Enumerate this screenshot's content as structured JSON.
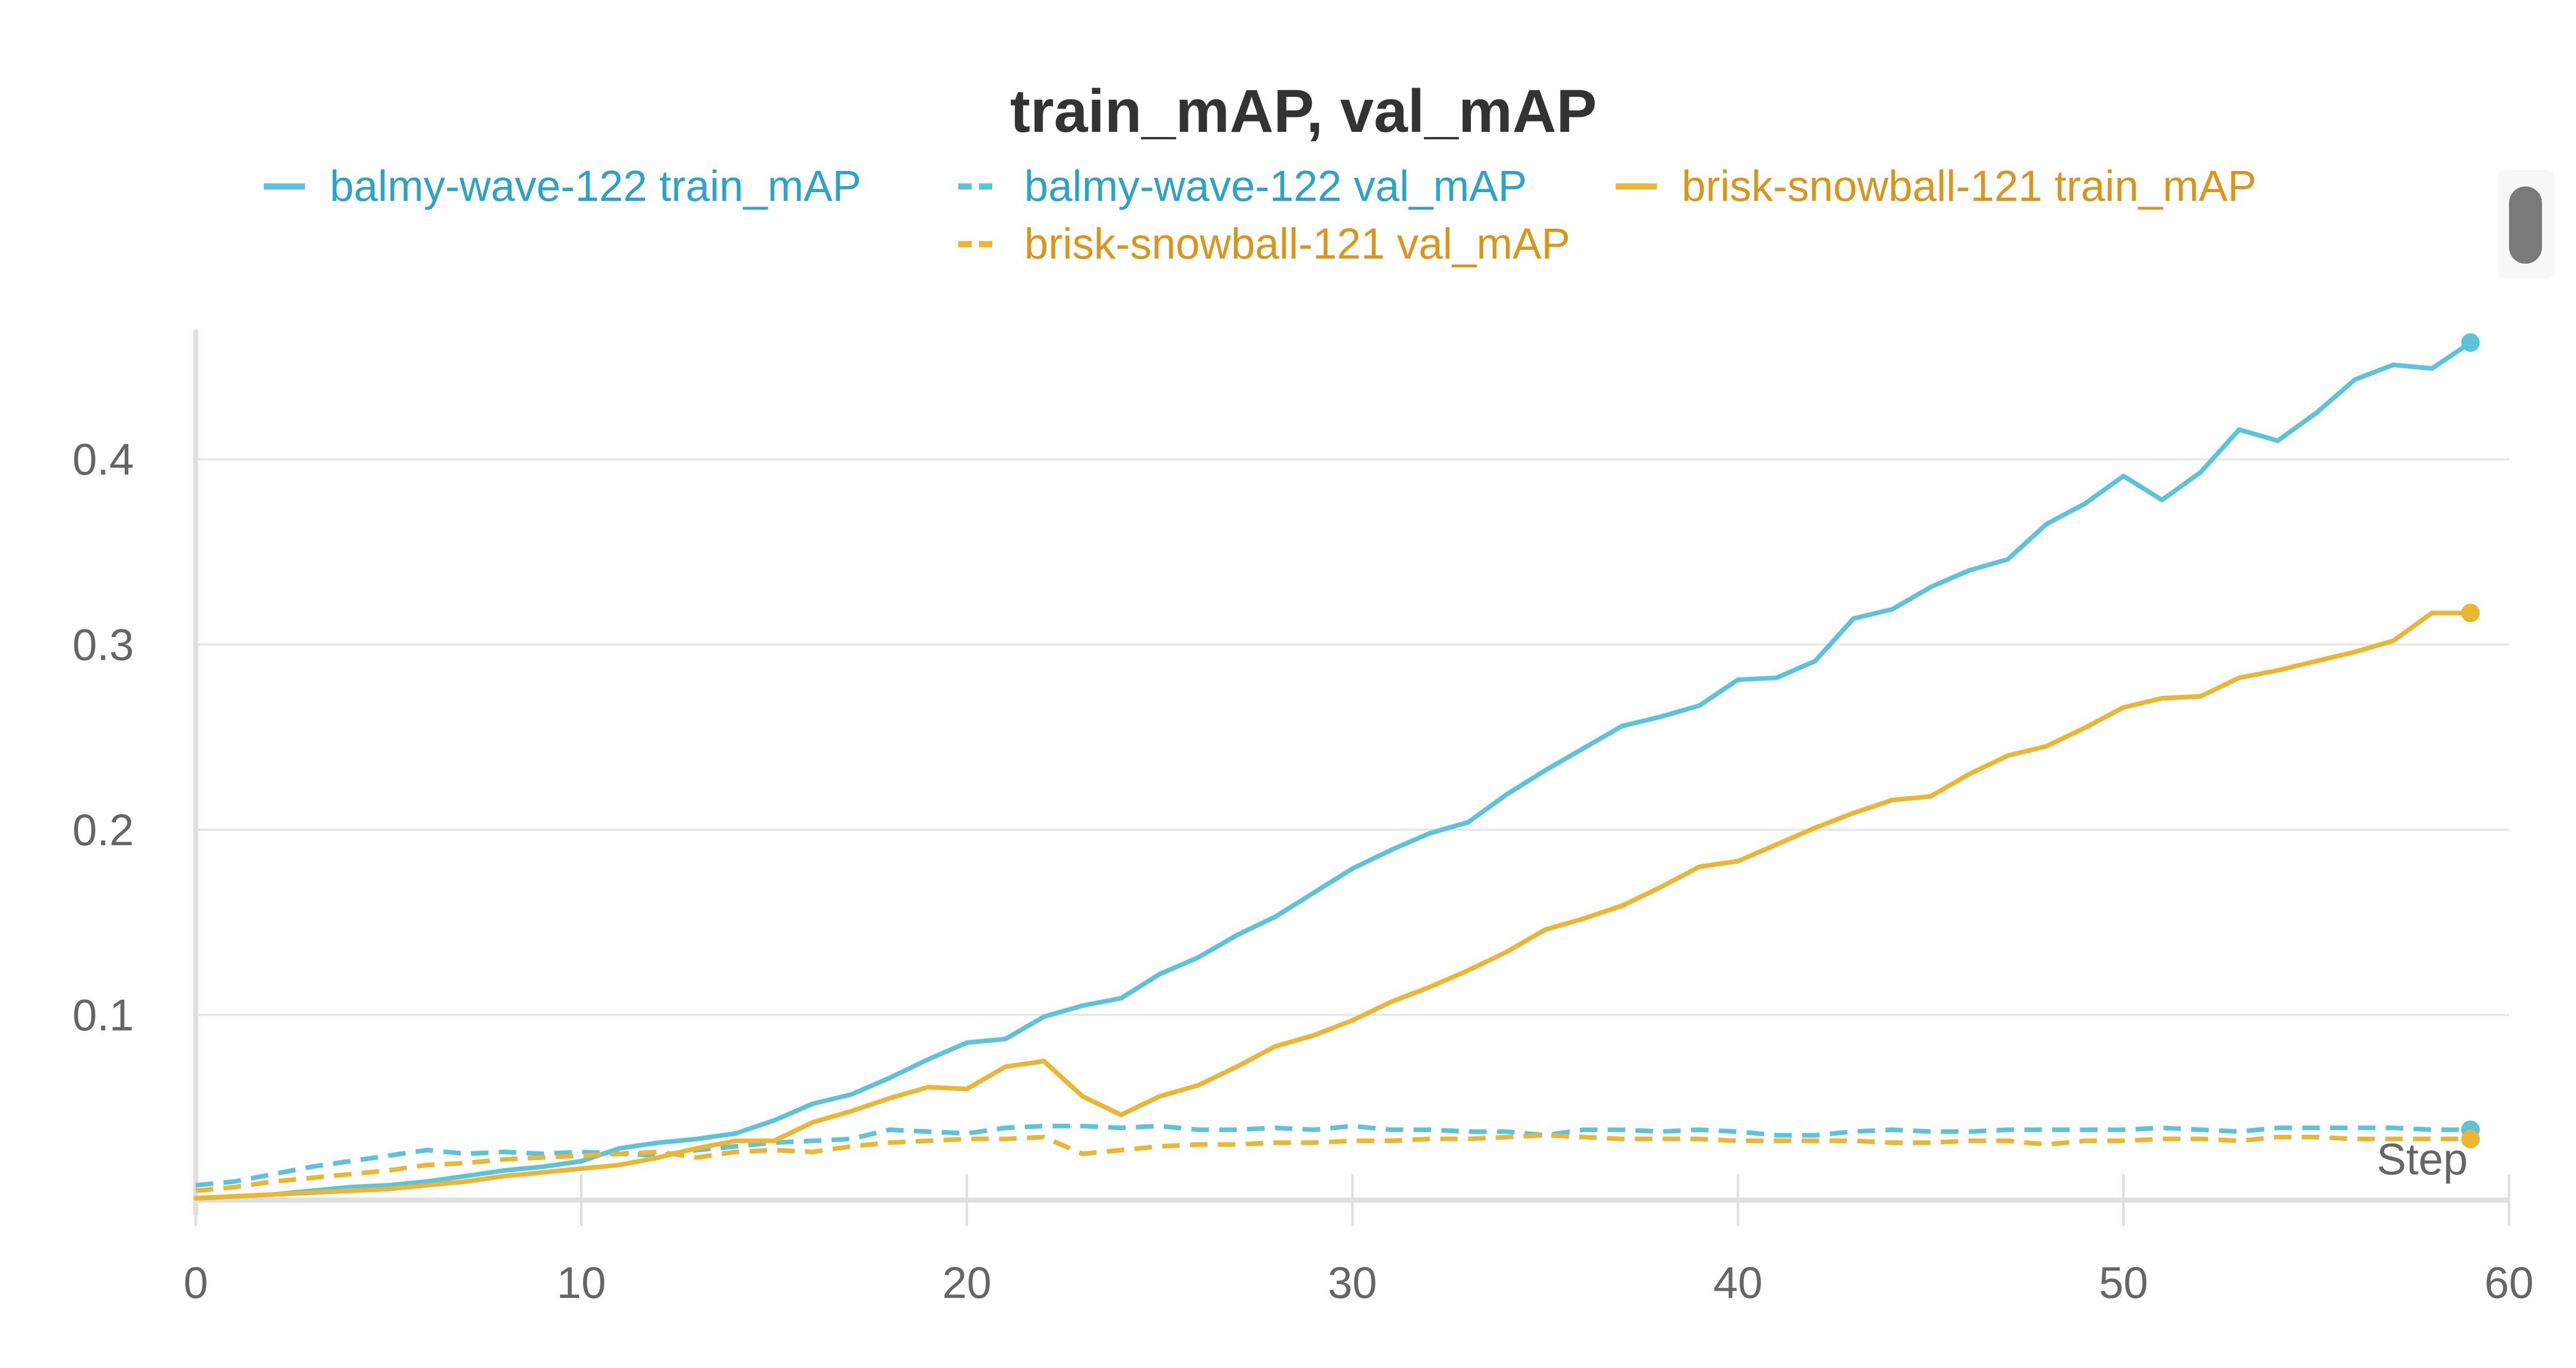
{
  "chart_data": {
    "type": "line",
    "title": "train_mAP, val_mAP",
    "xlabel": "Step",
    "ylabel": "",
    "xlim": [
      0,
      60
    ],
    "ylim": [
      0,
      0.47
    ],
    "xticks": [
      0,
      10,
      20,
      30,
      40,
      50,
      60
    ],
    "yticks": [
      0.1,
      0.2,
      0.3,
      0.4
    ],
    "ytick_labels": [
      "0.1",
      "0.2",
      "0.3",
      "0.4"
    ],
    "grid": true,
    "legend_position": "top",
    "x": [
      0,
      1,
      2,
      3,
      4,
      5,
      6,
      7,
      8,
      9,
      10,
      11,
      12,
      13,
      14,
      15,
      16,
      17,
      18,
      19,
      20,
      21,
      22,
      23,
      24,
      25,
      26,
      27,
      28,
      29,
      30,
      31,
      32,
      33,
      34,
      35,
      36,
      37,
      38,
      39,
      40,
      41,
      42,
      43,
      44,
      45,
      46,
      47,
      48,
      49,
      50,
      51,
      52,
      53,
      54,
      55,
      56,
      57,
      58,
      59
    ],
    "series": [
      {
        "name": "balmy-wave-122 train_mAP",
        "color": "#5bc3dc",
        "dash": "solid",
        "values": [
          0.001,
          0.002,
          0.003,
          0.005,
          0.007,
          0.008,
          0.01,
          0.013,
          0.016,
          0.018,
          0.021,
          0.028,
          0.031,
          0.033,
          0.036,
          0.043,
          0.052,
          0.057,
          0.066,
          0.076,
          0.085,
          0.087,
          0.099,
          0.105,
          0.109,
          0.122,
          0.131,
          0.143,
          0.153,
          0.166,
          0.179,
          0.189,
          0.198,
          0.204,
          0.219,
          0.232,
          0.244,
          0.256,
          0.261,
          0.267,
          0.281,
          0.282,
          0.291,
          0.314,
          0.319,
          0.331,
          0.34,
          0.346,
          0.365,
          0.376,
          0.391,
          0.378,
          0.393,
          0.416,
          0.41,
          0.425,
          0.443,
          0.451,
          0.449,
          0.463
        ]
      },
      {
        "name": "balmy-wave-122 val_mAP",
        "color": "#5bc3dc",
        "dash": "dashed",
        "values": [
          0.008,
          0.01,
          0.014,
          0.018,
          0.021,
          0.024,
          0.027,
          0.025,
          0.026,
          0.025,
          0.026,
          0.025,
          0.024,
          0.027,
          0.029,
          0.031,
          0.032,
          0.033,
          0.038,
          0.037,
          0.036,
          0.039,
          0.04,
          0.04,
          0.039,
          0.04,
          0.038,
          0.038,
          0.039,
          0.038,
          0.04,
          0.038,
          0.038,
          0.037,
          0.037,
          0.035,
          0.038,
          0.038,
          0.037,
          0.038,
          0.037,
          0.035,
          0.035,
          0.037,
          0.038,
          0.037,
          0.037,
          0.038,
          0.038,
          0.038,
          0.038,
          0.039,
          0.038,
          0.037,
          0.039,
          0.039,
          0.039,
          0.039,
          0.038,
          0.038
        ]
      },
      {
        "name": "brisk-snowball-121 train_mAP",
        "color": "#ecb631",
        "dash": "solid",
        "values": [
          0.001,
          0.002,
          0.003,
          0.004,
          0.005,
          0.006,
          0.008,
          0.01,
          0.013,
          0.015,
          0.017,
          0.019,
          0.023,
          0.028,
          0.032,
          0.032,
          0.042,
          0.048,
          0.055,
          0.061,
          0.06,
          0.072,
          0.075,
          0.056,
          0.046,
          0.056,
          0.062,
          0.072,
          0.083,
          0.089,
          0.097,
          0.107,
          0.115,
          0.124,
          0.134,
          0.146,
          0.152,
          0.159,
          0.169,
          0.18,
          0.183,
          0.192,
          0.201,
          0.209,
          0.216,
          0.218,
          0.23,
          0.24,
          0.245,
          0.255,
          0.266,
          0.271,
          0.272,
          0.282,
          0.286,
          0.291,
          0.296,
          0.302,
          0.317,
          0.317
        ]
      },
      {
        "name": "brisk-snowball-121 val_mAP",
        "color": "#ecb631",
        "dash": "dashed",
        "values": [
          0.005,
          0.007,
          0.01,
          0.012,
          0.014,
          0.016,
          0.019,
          0.02,
          0.022,
          0.023,
          0.024,
          0.025,
          0.026,
          0.023,
          0.026,
          0.027,
          0.026,
          0.029,
          0.031,
          0.032,
          0.033,
          0.033,
          0.034,
          0.025,
          0.027,
          0.029,
          0.03,
          0.03,
          0.031,
          0.031,
          0.032,
          0.032,
          0.033,
          0.033,
          0.034,
          0.035,
          0.034,
          0.033,
          0.033,
          0.033,
          0.032,
          0.032,
          0.032,
          0.032,
          0.031,
          0.031,
          0.032,
          0.032,
          0.03,
          0.032,
          0.032,
          0.033,
          0.033,
          0.032,
          0.034,
          0.034,
          0.033,
          0.033,
          0.033,
          0.033
        ]
      }
    ],
    "colors": {
      "legend_blue_text": "#2ea3c8",
      "legend_orange_text": "#d9961a"
    }
  }
}
